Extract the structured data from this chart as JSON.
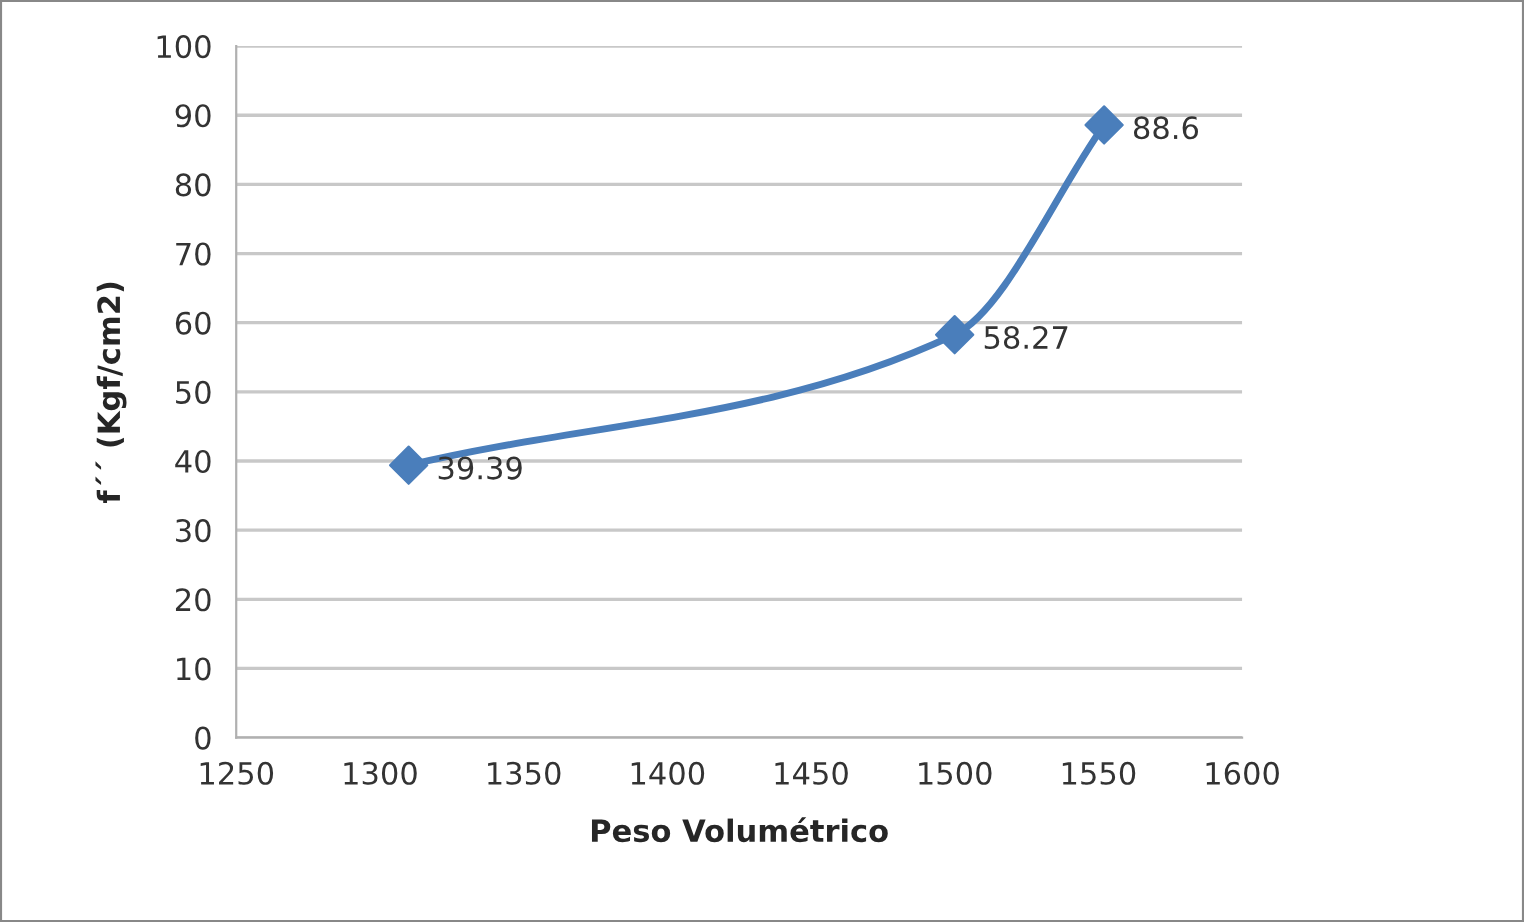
{
  "chart_data": {
    "type": "line",
    "xlabel": "Peso Volumétrico",
    "ylabel": "f´´ (Kgf/cm2)",
    "x": [
      1310,
      1500,
      1552
    ],
    "series": [
      {
        "color": "#4a7ebb",
        "values": [
          39.39,
          58.27,
          88.6
        ]
      }
    ],
    "xlim": [
      1250,
      1600
    ],
    "xticks": [
      1250,
      1300,
      1350,
      1400,
      1450,
      1500,
      1550,
      1600
    ],
    "ylim": [
      0,
      100
    ],
    "yticks": [
      0,
      10,
      20,
      30,
      40,
      50,
      60,
      70,
      80,
      90,
      100
    ],
    "grid": "y",
    "marker": "diamond",
    "line_style": "solid",
    "data_labels": true
  }
}
